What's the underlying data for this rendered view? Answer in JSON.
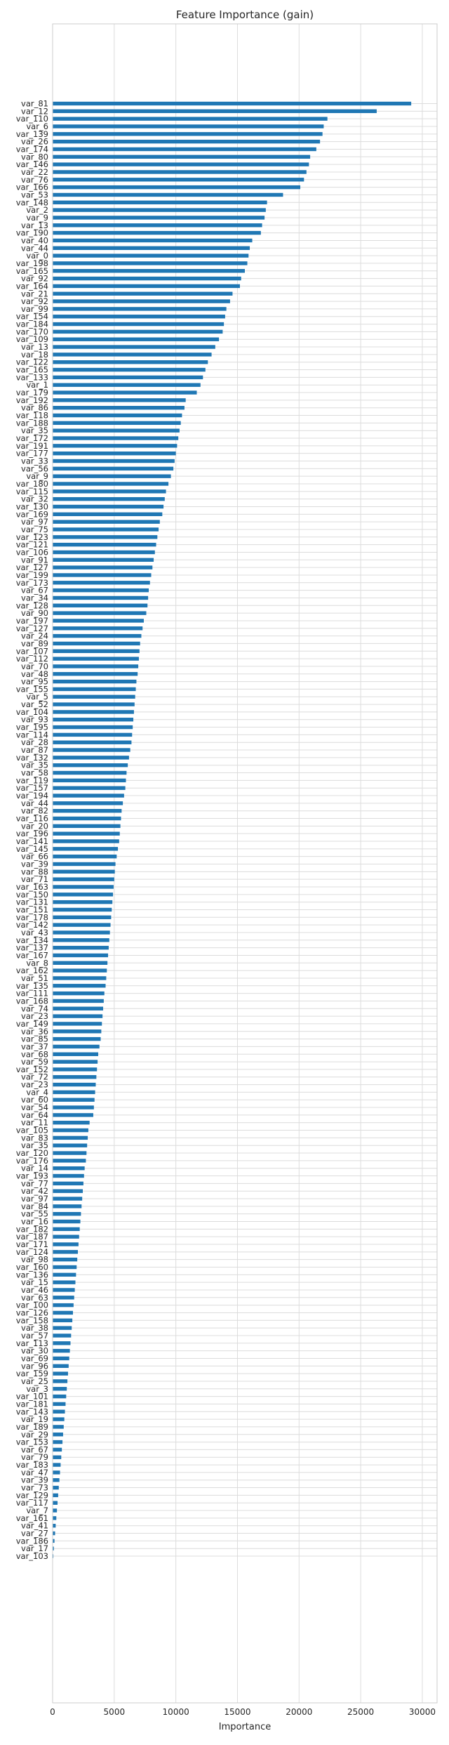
{
  "chart_data": {
    "type": "bar",
    "orientation": "horizontal",
    "title": "Feature Importance (gain)",
    "xlabel": "Importance",
    "ylabel": "",
    "xlim": [
      0,
      31200
    ],
    "xticks": [
      0,
      5000,
      10000,
      15000,
      20000,
      25000,
      30000
    ],
    "xtick_labels": [
      "0",
      "5000",
      "10000",
      "15000",
      "20000",
      "25000",
      "30000"
    ],
    "grid": true,
    "legend": "none",
    "bar_color": "#1f77b4",
    "categories": [
      "var_81",
      "var_12",
      "var_110",
      "var_6",
      "var_139",
      "var_26",
      "var_174",
      "var_80",
      "var_146",
      "var_22",
      "var_76",
      "var_166",
      "var_53",
      "var_148",
      "var_2",
      "var_9",
      "var_13",
      "var_190",
      "var_40",
      "var_44",
      "var_0",
      "var_198",
      "var_165",
      "var_92",
      "var_164",
      "var_21",
      "var_92",
      "var_99",
      "var_154",
      "var_184",
      "var_170",
      "var_109",
      "var_13",
      "var_18",
      "var_122",
      "var_165",
      "var_133",
      "var_1",
      "var_179",
      "var_192",
      "var_86",
      "var_118",
      "var_188",
      "var_35",
      "var_172",
      "var_191",
      "var_177",
      "var_33",
      "var_56",
      "var_9",
      "var_180",
      "var_115",
      "var_32",
      "var_130",
      "var_169",
      "var_97",
      "var_75",
      "var_123",
      "var_121",
      "var_106",
      "var_91",
      "var_127",
      "var_199",
      "var_173",
      "var_67",
      "var_34",
      "var_128",
      "var_90",
      "var_197",
      "var_127",
      "var_24",
      "var_89",
      "var_107",
      "var_112",
      "var_70",
      "var_48",
      "var_95",
      "var_155",
      "var_5",
      "var_52",
      "var_104",
      "var_93",
      "var_195",
      "var_114",
      "var_28",
      "var_87",
      "var_132",
      "var_35",
      "var_58",
      "var_119",
      "var_157",
      "var_194",
      "var_44",
      "var_82",
      "var_116",
      "var_20",
      "var_196",
      "var_141",
      "var_145",
      "var_66",
      "var_39",
      "var_88",
      "var_71",
      "var_163",
      "var_150",
      "var_131",
      "var_151",
      "var_178",
      "var_142",
      "var_43",
      "var_134",
      "var_137",
      "var_167",
      "var_8",
      "var_162",
      "var_51",
      "var_135",
      "var_111",
      "var_168",
      "var_74",
      "var_23",
      "var_149",
      "var_36",
      "var_85",
      "var_37",
      "var_68",
      "var_59",
      "var_152",
      "var_72",
      "var_23",
      "var_4",
      "var_60",
      "var_54",
      "var_64",
      "var_11",
      "var_105",
      "var_83",
      "var_35",
      "var_120",
      "var_176",
      "var_14",
      "var_193",
      "var_77",
      "var_42",
      "var_97",
      "var_84",
      "var_55",
      "var_16",
      "var_182",
      "var_187",
      "var_171",
      "var_124",
      "var_98",
      "var_160",
      "var_136",
      "var_15",
      "var_46",
      "var_63",
      "var_100",
      "var_126",
      "var_158",
      "var_38",
      "var_57",
      "var_113",
      "var_30",
      "var_69",
      "var_96",
      "var_159",
      "var_25",
      "var_3",
      "var_101",
      "var_181",
      "var_143",
      "var_19",
      "var_189",
      "var_29",
      "var_153",
      "var_67",
      "var_79",
      "var_183",
      "var_47",
      "var_39",
      "var_73",
      "var_129",
      "var_117",
      "var_7",
      "var_161",
      "var_41",
      "var_27",
      "var_186",
      "var_17",
      "var_103"
    ],
    "values": [
      29100,
      26300,
      22300,
      22000,
      21900,
      21700,
      21400,
      20900,
      20800,
      20600,
      20400,
      20100,
      18700,
      17400,
      17300,
      17200,
      17000,
      16900,
      16200,
      16000,
      15900,
      15800,
      15600,
      15300,
      15200,
      14600,
      14400,
      14100,
      14000,
      13900,
      13800,
      13500,
      13200,
      12900,
      12600,
      12400,
      12200,
      12000,
      11700,
      10800,
      10700,
      10500,
      10400,
      10300,
      10200,
      10100,
      10000,
      9900,
      9800,
      9600,
      9400,
      9200,
      9100,
      9000,
      8900,
      8700,
      8600,
      8500,
      8400,
      8300,
      8200,
      8100,
      8000,
      7900,
      7800,
      7750,
      7700,
      7600,
      7400,
      7300,
      7200,
      7100,
      7050,
      7000,
      6950,
      6900,
      6800,
      6750,
      6700,
      6650,
      6600,
      6550,
      6500,
      6450,
      6400,
      6300,
      6200,
      6100,
      6000,
      5950,
      5900,
      5800,
      5700,
      5600,
      5550,
      5500,
      5450,
      5400,
      5300,
      5200,
      5100,
      5050,
      5000,
      4950,
      4900,
      4850,
      4800,
      4750,
      4700,
      4650,
      4600,
      4550,
      4500,
      4450,
      4400,
      4350,
      4300,
      4200,
      4150,
      4100,
      4050,
      4000,
      3950,
      3900,
      3800,
      3700,
      3650,
      3600,
      3550,
      3500,
      3450,
      3400,
      3350,
      3300,
      3000,
      2900,
      2850,
      2800,
      2750,
      2700,
      2600,
      2550,
      2500,
      2450,
      2400,
      2350,
      2300,
      2250,
      2200,
      2150,
      2100,
      2050,
      2000,
      1950,
      1900,
      1850,
      1800,
      1750,
      1700,
      1650,
      1600,
      1550,
      1500,
      1450,
      1400,
      1350,
      1300,
      1250,
      1200,
      1150,
      1100,
      1050,
      1000,
      950,
      900,
      850,
      800,
      750,
      700,
      650,
      600,
      550,
      500,
      450,
      400,
      350,
      300,
      250,
      200,
      150,
      100,
      60
    ]
  }
}
